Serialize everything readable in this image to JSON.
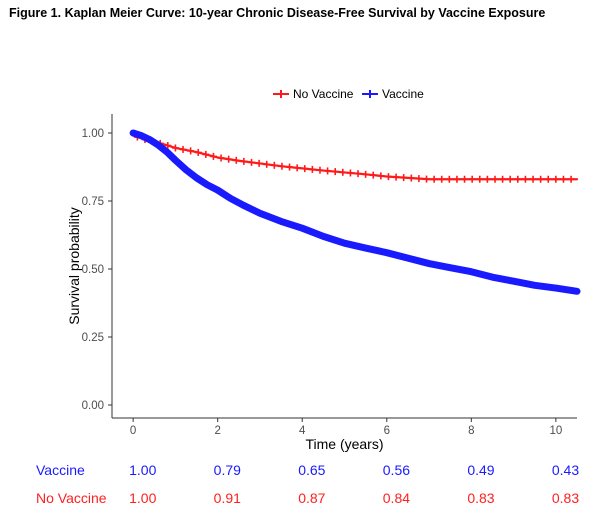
{
  "figure_title": "Figure 1. Kaplan Meier Curve: 10-year Chronic Disease-Free Survival by Vaccine Exposure",
  "colors": {
    "no_vaccine": "#ff1a1a",
    "vaccine": "#1a1aff",
    "axis": "#333333"
  },
  "chart_data": {
    "type": "line",
    "title": "",
    "xlabel": "Time (years)",
    "ylabel": "Survival probability",
    "xlim": [
      -0.5,
      10.5
    ],
    "ylim": [
      0,
      1.0
    ],
    "x_ticks": [
      0,
      2,
      4,
      6,
      8,
      10
    ],
    "x_tick_labels": [
      "0",
      "2",
      "4",
      "6",
      "8",
      "10"
    ],
    "y_ticks": [
      0.0,
      0.25,
      0.5,
      0.75,
      1.0
    ],
    "y_tick_labels": [
      "0.00",
      "0.25",
      "0.50",
      "0.75",
      "1.00"
    ],
    "grid": false,
    "legend_position": "top",
    "series": [
      {
        "name": "No Vaccine",
        "color": "#ff1a1a",
        "censor_marks": true,
        "points": [
          [
            0,
            1.0
          ],
          [
            0.1,
            0.985
          ],
          [
            0.3,
            0.975
          ],
          [
            0.5,
            0.968
          ],
          [
            0.8,
            0.955
          ],
          [
            1,
            0.945
          ],
          [
            1.5,
            0.93
          ],
          [
            2,
            0.91
          ],
          [
            2.5,
            0.898
          ],
          [
            3,
            0.888
          ],
          [
            3.5,
            0.878
          ],
          [
            4,
            0.87
          ],
          [
            4.5,
            0.862
          ],
          [
            5,
            0.855
          ],
          [
            5.5,
            0.848
          ],
          [
            6,
            0.84
          ],
          [
            6.5,
            0.835
          ],
          [
            7,
            0.83
          ],
          [
            7.5,
            0.83
          ],
          [
            8,
            0.83
          ],
          [
            8.5,
            0.83
          ],
          [
            9,
            0.83
          ],
          [
            9.5,
            0.83
          ],
          [
            10,
            0.83
          ],
          [
            10.5,
            0.83
          ]
        ]
      },
      {
        "name": "Vaccine",
        "color": "#1a1aff",
        "censor_marks": false,
        "points": [
          [
            0,
            1.0
          ],
          [
            0.2,
            0.99
          ],
          [
            0.4,
            0.975
          ],
          [
            0.6,
            0.955
          ],
          [
            0.8,
            0.93
          ],
          [
            1,
            0.9
          ],
          [
            1.25,
            0.865
          ],
          [
            1.5,
            0.835
          ],
          [
            1.75,
            0.81
          ],
          [
            2,
            0.79
          ],
          [
            2.3,
            0.76
          ],
          [
            2.6,
            0.735
          ],
          [
            3,
            0.705
          ],
          [
            3.5,
            0.675
          ],
          [
            4,
            0.65
          ],
          [
            4.5,
            0.62
          ],
          [
            5,
            0.595
          ],
          [
            5.5,
            0.577
          ],
          [
            6,
            0.56
          ],
          [
            6.5,
            0.54
          ],
          [
            7,
            0.52
          ],
          [
            7.5,
            0.505
          ],
          [
            8,
            0.49
          ],
          [
            8.5,
            0.47
          ],
          [
            9,
            0.455
          ],
          [
            9.5,
            0.44
          ],
          [
            10,
            0.43
          ],
          [
            10.5,
            0.418
          ]
        ]
      }
    ],
    "risk_table": {
      "times": [
        0,
        2,
        4,
        6,
        8,
        10
      ],
      "rows": [
        {
          "label": "Vaccine",
          "values": [
            "1.00",
            "0.79",
            "0.65",
            "0.56",
            "0.49",
            "0.43"
          ]
        },
        {
          "label": "No Vaccine",
          "values": [
            "1.00",
            "0.91",
            "0.87",
            "0.84",
            "0.83",
            "0.83"
          ]
        }
      ]
    }
  }
}
